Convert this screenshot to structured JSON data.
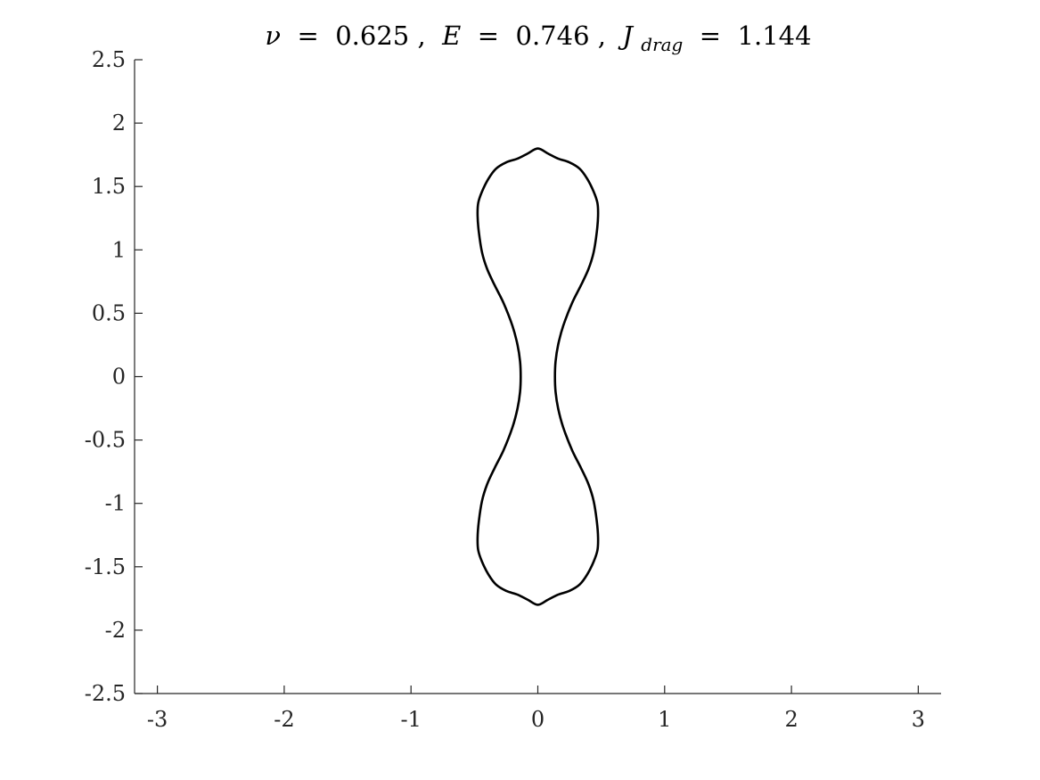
{
  "chart_data": {
    "type": "line",
    "title": {
      "nu_symbol": "ν",
      "nu_value": "0.625",
      "e_symbol": "E",
      "e_value": "0.746",
      "j_symbol": "J",
      "j_subscript": "drag",
      "j_value": "1.144",
      "equals": " = ",
      "separator": ", "
    },
    "xlabel": "",
    "ylabel": "",
    "xlim": [
      -3.18,
      3.18
    ],
    "ylim": [
      -2.5,
      2.5
    ],
    "xticks": [
      -3,
      -2,
      -1,
      0,
      1,
      2,
      3
    ],
    "xtick_labels": [
      "-3",
      "-2",
      "-1",
      "0",
      "1",
      "2",
      "3"
    ],
    "yticks": [
      2.5,
      2,
      1.5,
      1,
      0.5,
      0,
      -0.5,
      -1,
      -1.5,
      -2,
      -2.5
    ],
    "ytick_labels": [
      "2.5",
      "2",
      "1.5",
      "1",
      "0.5",
      "0",
      "-0.5",
      "-1",
      "-1.5",
      "-2",
      "-2.5"
    ],
    "grid": false,
    "line_color": "#000000",
    "axis_color": "#262626",
    "series": [
      {
        "closed": true,
        "x": [
          0.0,
          0.08,
          0.16,
          0.25,
          0.33,
          0.39,
          0.44,
          0.47,
          0.475,
          0.465,
          0.44,
          0.4,
          0.34,
          0.27,
          0.2,
          0.16,
          0.14,
          0.135,
          0.14,
          0.16,
          0.2,
          0.27,
          0.34,
          0.4,
          0.44,
          0.465,
          0.475,
          0.47,
          0.44,
          0.39,
          0.33,
          0.25,
          0.16,
          0.08,
          0.0,
          -0.08,
          -0.16,
          -0.25,
          -0.33,
          -0.39,
          -0.44,
          -0.47,
          -0.475,
          -0.465,
          -0.44,
          -0.4,
          -0.34,
          -0.27,
          -0.2,
          -0.16,
          -0.14,
          -0.135,
          -0.14,
          -0.16,
          -0.2,
          -0.27,
          -0.34,
          -0.4,
          -0.44,
          -0.465,
          -0.475,
          -0.47,
          -0.44,
          -0.39,
          -0.33,
          -0.25,
          -0.16,
          -0.08
        ],
        "y": [
          1.8,
          1.76,
          1.72,
          1.69,
          1.64,
          1.56,
          1.46,
          1.37,
          1.27,
          1.14,
          0.98,
          0.85,
          0.72,
          0.58,
          0.4,
          0.25,
          0.12,
          0.0,
          -0.12,
          -0.25,
          -0.4,
          -0.58,
          -0.72,
          -0.85,
          -0.98,
          -1.14,
          -1.27,
          -1.37,
          -1.46,
          -1.56,
          -1.64,
          -1.69,
          -1.72,
          -1.76,
          -1.8,
          -1.76,
          -1.72,
          -1.69,
          -1.64,
          -1.56,
          -1.46,
          -1.37,
          -1.27,
          -1.14,
          -0.98,
          -0.85,
          -0.72,
          -0.58,
          -0.4,
          -0.25,
          -0.12,
          0.0,
          0.12,
          0.25,
          0.4,
          0.58,
          0.72,
          0.85,
          0.98,
          1.14,
          1.27,
          1.37,
          1.46,
          1.56,
          1.64,
          1.69,
          1.72,
          1.76
        ]
      }
    ]
  }
}
